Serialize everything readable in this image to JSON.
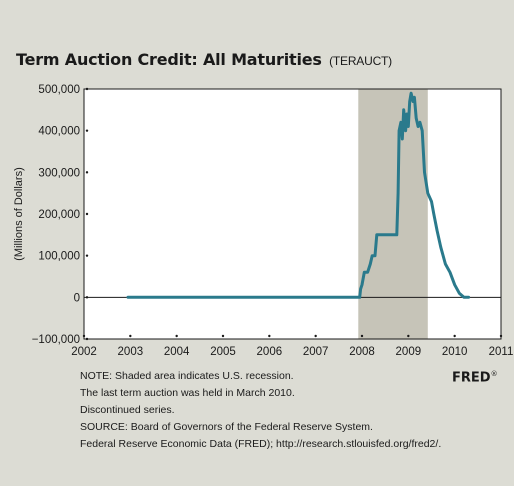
{
  "header": {
    "title": "Term Auction Credit: All Maturities",
    "series_code": "(TERAUCT)"
  },
  "chart_data": {
    "type": "line",
    "title": "Term Auction Credit: All Maturities (TERAUCT)",
    "xlabel": "",
    "ylabel": "(Millions of Dollars)",
    "xlim": [
      2002,
      2011
    ],
    "ylim": [
      -100000,
      500000
    ],
    "x_ticks": [
      "2002",
      "2003",
      "2004",
      "2005",
      "2006",
      "2007",
      "2008",
      "2009",
      "2010",
      "2011"
    ],
    "y_ticks": [
      "500,000",
      "400,000",
      "300,000",
      "200,000",
      "100,000",
      "0",
      "−100,000"
    ],
    "y_tick_values": [
      500000,
      400000,
      300000,
      200000,
      100000,
      0,
      -100000
    ],
    "recession": {
      "start": 2007.92,
      "end": 2009.42
    },
    "series": [
      {
        "color": "#2a7a8c",
        "points": [
          [
            2002.95,
            0
          ],
          [
            2007.95,
            0
          ],
          [
            2007.97,
            20000
          ],
          [
            2008.0,
            30000
          ],
          [
            2008.05,
            60000
          ],
          [
            2008.12,
            60000
          ],
          [
            2008.18,
            80000
          ],
          [
            2008.22,
            100000
          ],
          [
            2008.28,
            100000
          ],
          [
            2008.32,
            150000
          ],
          [
            2008.5,
            150000
          ],
          [
            2008.75,
            150000
          ],
          [
            2008.78,
            250000
          ],
          [
            2008.8,
            400000
          ],
          [
            2008.84,
            420000
          ],
          [
            2008.87,
            380000
          ],
          [
            2008.9,
            450000
          ],
          [
            2008.94,
            400000
          ],
          [
            2008.97,
            440000
          ],
          [
            2009.0,
            410000
          ],
          [
            2009.03,
            470000
          ],
          [
            2009.06,
            490000
          ],
          [
            2009.1,
            470000
          ],
          [
            2009.13,
            480000
          ],
          [
            2009.17,
            430000
          ],
          [
            2009.21,
            410000
          ],
          [
            2009.25,
            420000
          ],
          [
            2009.3,
            400000
          ],
          [
            2009.35,
            300000
          ],
          [
            2009.42,
            250000
          ],
          [
            2009.5,
            230000
          ],
          [
            2009.55,
            200000
          ],
          [
            2009.62,
            160000
          ],
          [
            2009.7,
            120000
          ],
          [
            2009.8,
            80000
          ],
          [
            2009.9,
            60000
          ],
          [
            2010.0,
            30000
          ],
          [
            2010.1,
            10000
          ],
          [
            2010.2,
            0
          ],
          [
            2010.3,
            0
          ]
        ]
      }
    ]
  },
  "notes": {
    "line1": "NOTE: Shaded area indicates U.S. recession.",
    "line2": "The last term auction was held in March 2010.",
    "line3": "Discontinued series.",
    "line4": "SOURCE: Board of Governors of the Federal Reserve System.",
    "line5": "Federal Reserve Economic Data (FRED); http://research.stlouisfed.org/fred2/."
  },
  "branding": {
    "fred_label": "FRED",
    "fred_mark": "®"
  }
}
